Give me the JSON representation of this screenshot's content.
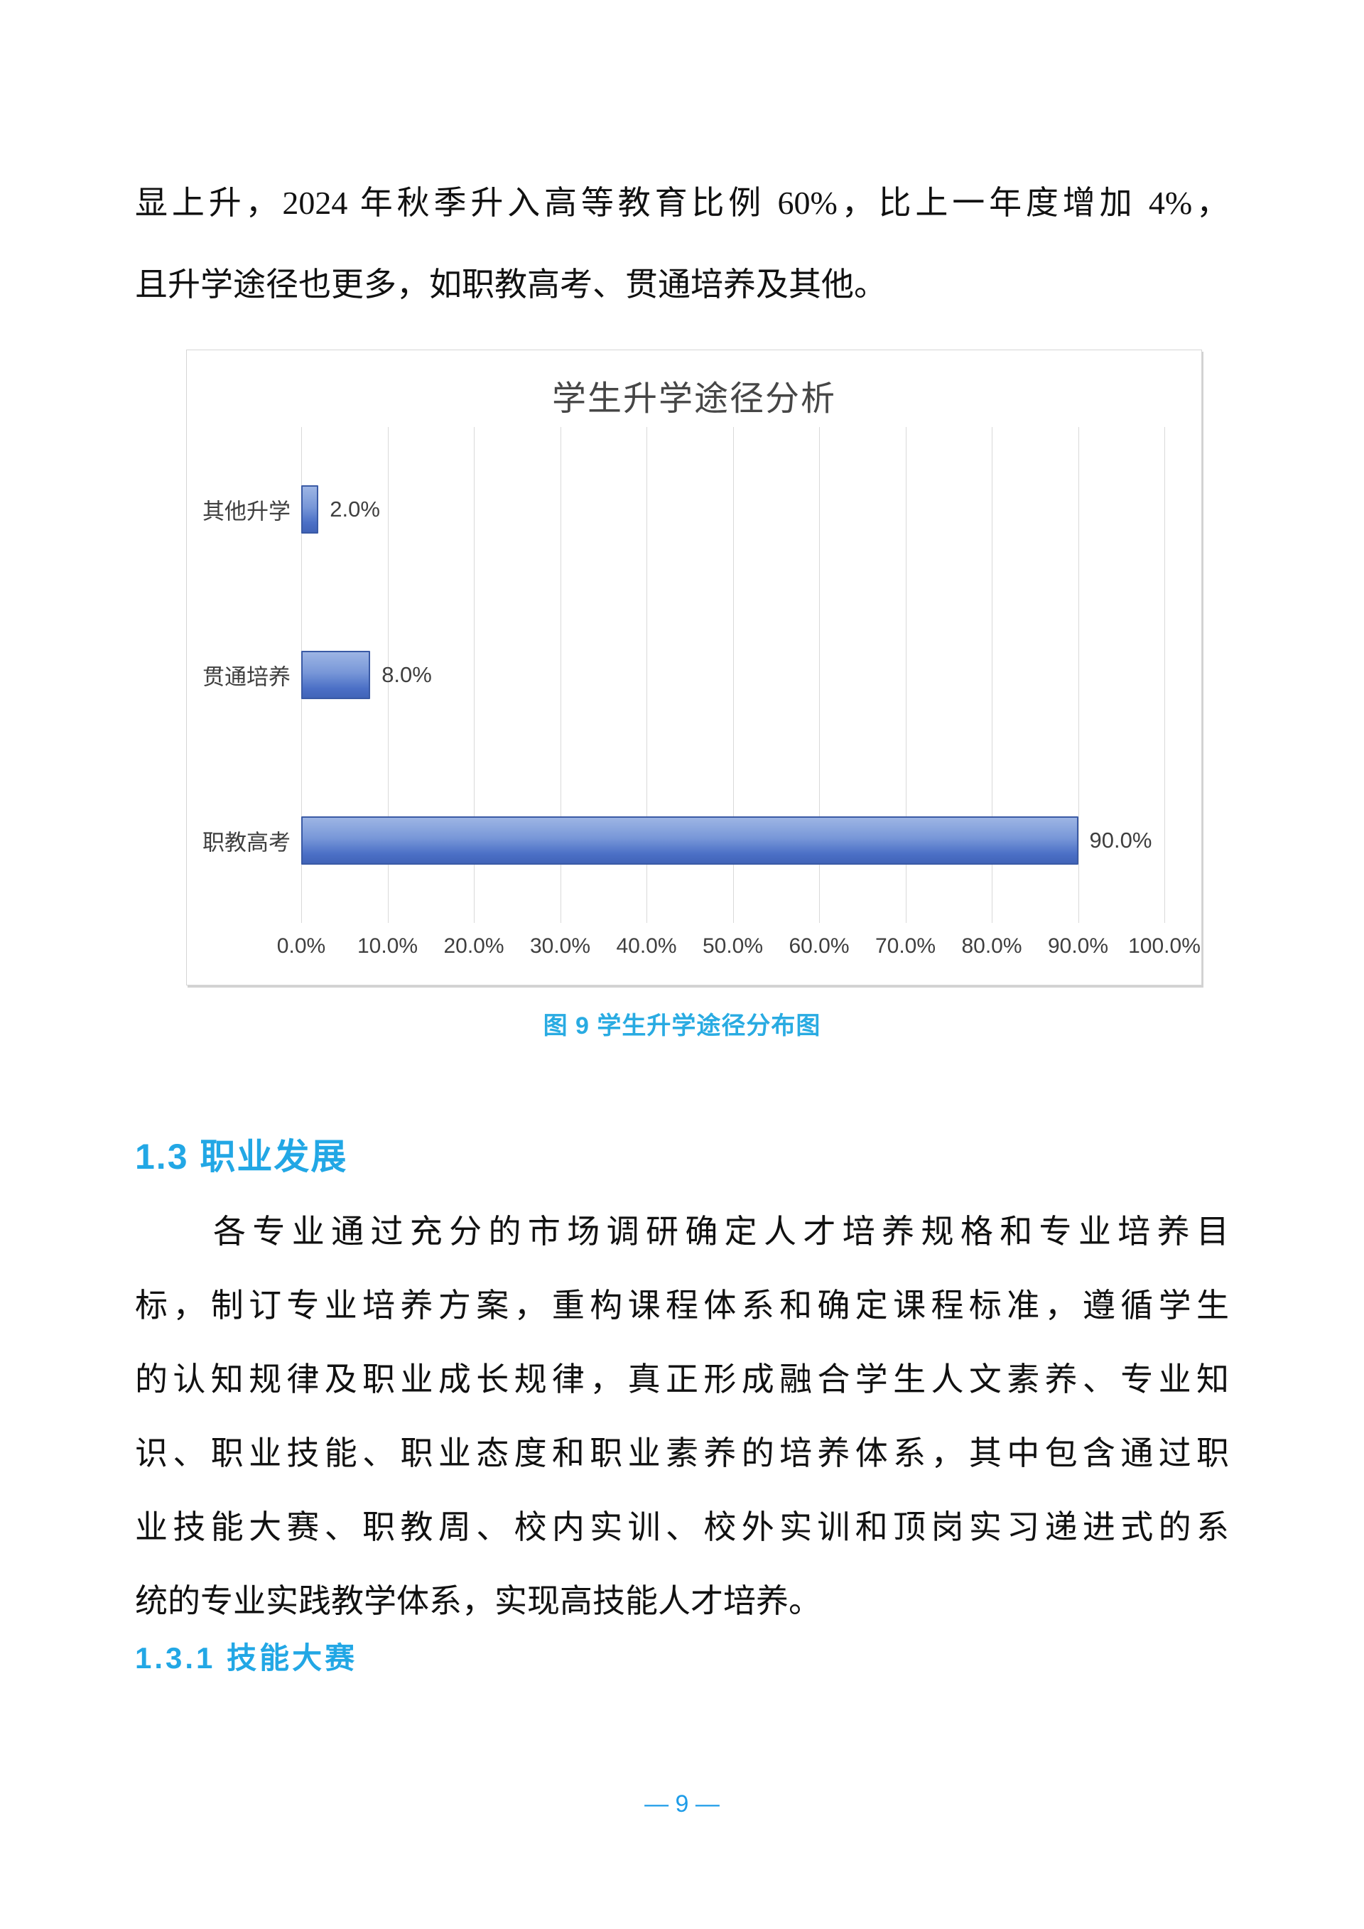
{
  "intro_paragraph": {
    "lines": [
      "显上升，2024 年秋季升入高等教育比例 60%，比上一年度增加 4%，",
      "且升学途径也更多，如职教高考、贯通培养及其他。"
    ]
  },
  "chart_caption": "图 9  学生升学途径分布图",
  "section": {
    "heading": "1.3  职业发展",
    "paragraph_lines": [
      "各专业通过充分的市场调研确定人才培养规格和专业培养目",
      "标，制订专业培养方案，重构课程体系和确定课程标准，遵循学生",
      "的认知规律及职业成长规律，真正形成融合学生人文素养、专业知",
      "识、职业技能、职业态度和职业素养的培养体系，其中包含通过职",
      "业技能大赛、职教周、校内实训、校外实训和顶岗实习递进式的系",
      "统的专业实践教学体系，实现高技能人才培养。"
    ],
    "subheading": "1.3.1  技能大赛"
  },
  "page": {
    "number_label": "— 9 —"
  },
  "colors": {
    "heading_blue": "#22a7e5",
    "caption_blue": "#29abe2",
    "page_number_blue": "#1e9ce8",
    "bar_border": "#3a5aa5",
    "bar_fill_top": "#9db5e4",
    "bar_fill_bottom": "#4164b8",
    "gridline": "#d9d9d9",
    "chart_text": "#3f3f3f"
  },
  "chart_data": {
    "type": "bar",
    "orientation": "horizontal",
    "title": "学生升学途径分析",
    "categories": [
      "其他升学",
      "贯通培养",
      "职教高考"
    ],
    "values": [
      2.0,
      8.0,
      90.0
    ],
    "value_labels": [
      "2.0%",
      "8.0%",
      "90.0%"
    ],
    "x_tick_labels": [
      "0.0%",
      "10.0%",
      "20.0%",
      "30.0%",
      "40.0%",
      "50.0%",
      "60.0%",
      "70.0%",
      "80.0%",
      "90.0%",
      "100.0%"
    ],
    "xlim": [
      0,
      100
    ],
    "grid": "vertical",
    "legend": "none"
  }
}
